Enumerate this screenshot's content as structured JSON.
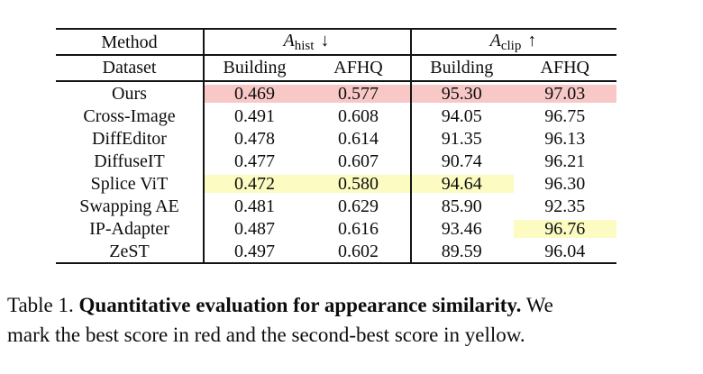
{
  "colors": {
    "best": "#f8c8c6",
    "second": "#fbfbc2"
  },
  "table": {
    "header": {
      "method_label": "Method",
      "dataset_label": "Dataset",
      "group1": {
        "symbol": "A",
        "subscript": "hist",
        "arrow": "↓"
      },
      "group2": {
        "symbol": "A",
        "subscript": "clip",
        "arrow": "↑"
      },
      "subcolumns": [
        "Building",
        "AFHQ",
        "Building",
        "AFHQ"
      ]
    },
    "rows": [
      {
        "method": "Ours",
        "values": [
          "0.469",
          "0.577",
          "95.30",
          "97.03"
        ],
        "highlight": [
          "best",
          "best",
          "best",
          "best"
        ]
      },
      {
        "method": "Cross-Image",
        "values": [
          "0.491",
          "0.608",
          "94.05",
          "96.75"
        ],
        "highlight": [
          null,
          null,
          null,
          null
        ]
      },
      {
        "method": "DiffEditor",
        "values": [
          "0.478",
          "0.614",
          "91.35",
          "96.13"
        ],
        "highlight": [
          null,
          null,
          null,
          null
        ]
      },
      {
        "method": "DiffuseIT",
        "values": [
          "0.477",
          "0.607",
          "90.74",
          "96.21"
        ],
        "highlight": [
          null,
          null,
          null,
          null
        ]
      },
      {
        "method": "Splice ViT",
        "values": [
          "0.472",
          "0.580",
          "94.64",
          "96.30"
        ],
        "highlight": [
          "second",
          "second",
          "second",
          null
        ]
      },
      {
        "method": "Swapping AE",
        "values": [
          "0.481",
          "0.629",
          "85.90",
          "92.35"
        ],
        "highlight": [
          null,
          null,
          null,
          null
        ]
      },
      {
        "method": "IP-Adapter",
        "values": [
          "0.487",
          "0.616",
          "93.46",
          "96.76"
        ],
        "highlight": [
          null,
          null,
          null,
          "second"
        ]
      },
      {
        "method": "ZeST",
        "values": [
          "0.497",
          "0.602",
          "89.59",
          "96.04"
        ],
        "highlight": [
          null,
          null,
          null,
          null
        ]
      }
    ]
  },
  "caption": {
    "prefix": "Table 1. ",
    "bold": "Quantitative evaluation for appearance similarity.",
    "suffix": " We",
    "line2": "mark the best score in red and the second-best score in yellow."
  }
}
